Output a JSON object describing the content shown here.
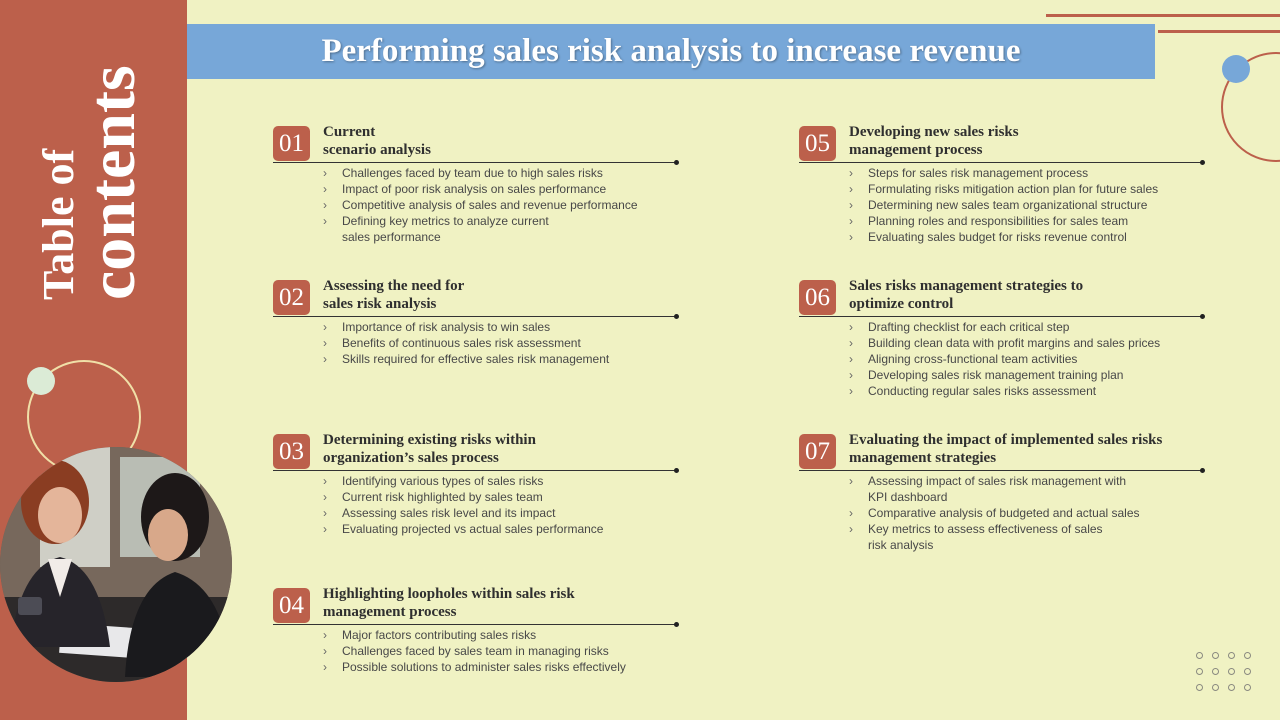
{
  "sidebar": {
    "title_line1": "Table of",
    "title_line2": "contents"
  },
  "header": {
    "title": "Performing sales risk analysis to increase revenue"
  },
  "colors": {
    "accent": "#bc604b",
    "title_bar": "#77a7d8",
    "background": "#f0f2c3"
  },
  "sections": [
    {
      "number": "01",
      "title_line1": "Current",
      "title_line2": "scenario analysis",
      "items": [
        "Challenges  faced  by team due to high sales risks",
        "Impact of poor risk analysis on sales performance",
        "Competitive  analysis of sales and revenue  performance",
        "Defining  key metrics to analyze current"
      ],
      "items_continuation": "sales performance"
    },
    {
      "number": "02",
      "title_line1": "Assessing  the need for",
      "title_line2": "sales risk analysis",
      "items": [
        "Importance  of risk analysis to win sales",
        "Benefits of continuous sales risk assessment",
        "Skills required  for effective  sales risk management"
      ]
    },
    {
      "number": "03",
      "title_line1": "Determining existing risks within",
      "title_line2": "organization’s sales process",
      "items": [
        "Identifying various  types of sales risks",
        "Current  risk highlighted  by sales team",
        "Assessing sales risk level  and its impact",
        "Evaluating  projected  vs actual sales performance"
      ]
    },
    {
      "number": "04",
      "title_line1": "Highlighting loopholes within sales risk",
      "title_line2": "management process",
      "items": [
        "Major factors contributing  sales risks",
        "Challenges  faced  by sales team  in managing risks",
        "Possible solutions to administer sales risks effectively"
      ]
    },
    {
      "number": "05",
      "title_line1": "Developing new sales risks",
      "title_line2": "management process",
      "items": [
        "Steps for  sales risk management  process",
        "Formulating  risks mitigation action plan for future  sales",
        "Determining  new sales team organizational  structure",
        "Planning roles  and responsibilities  for sales team",
        "Evaluating  sales budget  for risks revenue  control"
      ]
    },
    {
      "number": "06",
      "title_line1": "Sales risks management strategies to",
      "title_line2": "optimize control",
      "items": [
        "Drafting  checklist for each critical step",
        "Building  clean data with profit margins and sales prices",
        "Aligning cross-functional  team activities",
        "Developing  sales risk management  training plan",
        "Conducting  regular  sales risks assessment"
      ]
    },
    {
      "number": "07",
      "title_line1": "Evaluating the impact of implemented sales risks",
      "title_line2": "management strategies",
      "items": [
        "Assessing impact of sales risk management  with"
      ],
      "items_continuation": "KPI dashboard",
      "items_after": [
        "Comparative  analysis of budgeted  and actual sales",
        "Key metrics to assess effectiveness  of sales"
      ],
      "items_after_continuation": "risk analysis"
    }
  ]
}
